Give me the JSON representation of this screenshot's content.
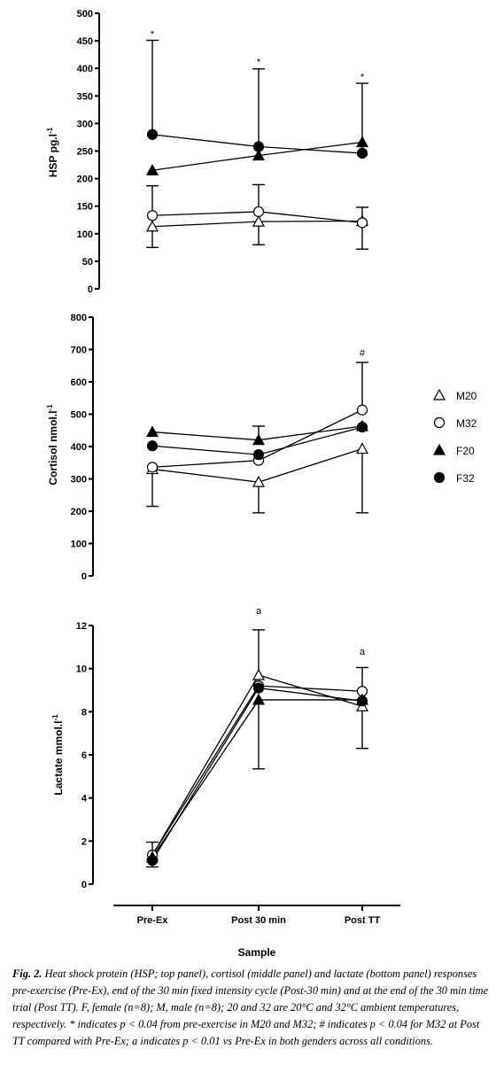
{
  "legend": [
    {
      "name": "M20",
      "marker": "triangle",
      "filled": false
    },
    {
      "name": "M32",
      "marker": "circle",
      "filled": false
    },
    {
      "name": "F20",
      "marker": "triangle",
      "filled": true
    },
    {
      "name": "F32",
      "marker": "circle",
      "filled": true
    }
  ],
  "chart_data": [
    {
      "type": "line",
      "panel": "top",
      "ylabel": "HSP pg.l",
      "ylabel_sup": "-1",
      "ylim": [
        0,
        500
      ],
      "yticks": [
        0,
        50,
        100,
        150,
        200,
        250,
        300,
        350,
        400,
        450,
        500
      ],
      "categories": [
        "Pre-Ex",
        "Post 30 min",
        "Post TT"
      ],
      "series": [
        {
          "name": "M20",
          "values": [
            113,
            122,
            123
          ],
          "err_up": [
            0,
            0,
            0
          ],
          "err_down": [
            38,
            42,
            0
          ]
        },
        {
          "name": "M32",
          "values": [
            133,
            140,
            120
          ],
          "err_up": [
            54,
            49,
            28
          ],
          "err_down": [
            0,
            0,
            48
          ]
        },
        {
          "name": "F20",
          "values": [
            215,
            242,
            266
          ],
          "err_up": [
            0,
            0,
            0
          ],
          "err_down": [
            0,
            0,
            0
          ]
        },
        {
          "name": "F32",
          "values": [
            280,
            258,
            246
          ],
          "err_up": [
            171,
            141,
            127
          ],
          "err_down": [
            0,
            0,
            0
          ]
        }
      ],
      "annotations": [
        {
          "category": 0,
          "value": 463,
          "text": "*"
        },
        {
          "category": 1,
          "value": 412,
          "text": "*"
        },
        {
          "category": 2,
          "value": 385,
          "text": "*"
        }
      ]
    },
    {
      "type": "line",
      "panel": "middle",
      "ylabel": "Cortisol nmol.l",
      "ylabel_sup": "-1",
      "ylim": [
        0,
        800
      ],
      "yticks": [
        0,
        100,
        200,
        300,
        400,
        500,
        600,
        700,
        800
      ],
      "categories": [
        "Pre-Ex",
        "Post 30 min",
        "Post TT"
      ],
      "series": [
        {
          "name": "M20",
          "values": [
            330,
            290,
            393
          ],
          "err_up": [
            0,
            0,
            0
          ],
          "err_down": [
            115,
            95,
            198
          ]
        },
        {
          "name": "M32",
          "values": [
            336,
            357,
            513
          ],
          "err_up": [
            0,
            0,
            147
          ],
          "err_down": [
            0,
            0,
            0
          ]
        },
        {
          "name": "F20",
          "values": [
            445,
            420,
            463
          ],
          "err_up": [
            0,
            43,
            0
          ],
          "err_down": [
            0,
            0,
            0
          ]
        },
        {
          "name": "F32",
          "values": [
            402,
            375,
            460
          ],
          "err_up": [
            0,
            0,
            0
          ],
          "err_down": [
            0,
            0,
            0
          ]
        }
      ],
      "annotations": [
        {
          "category": 2,
          "value": 690,
          "text": "#"
        }
      ]
    },
    {
      "type": "line",
      "panel": "bottom",
      "ylabel": "Lactate mmol.l",
      "ylabel_sup": "-1",
      "xlabel": "Sample",
      "ylim": [
        0,
        12
      ],
      "yticks": [
        0,
        2,
        4,
        6,
        8,
        10,
        12
      ],
      "categories": [
        "Pre-Ex",
        "Post 30 min",
        "Post TT"
      ],
      "series": [
        {
          "name": "M20",
          "values": [
            1.35,
            9.7,
            8.25
          ],
          "err_up": [
            0,
            0,
            0
          ],
          "err_down": [
            0.55,
            0,
            1.95
          ]
        },
        {
          "name": "M32",
          "values": [
            1.35,
            9.2,
            8.95
          ],
          "err_up": [
            0.6,
            2.6,
            1.1
          ],
          "err_down": [
            0,
            0,
            0
          ]
        },
        {
          "name": "F20",
          "values": [
            1.25,
            8.55,
            8.55
          ],
          "err_up": [
            0,
            0,
            0
          ],
          "err_down": [
            0,
            3.2,
            0
          ]
        },
        {
          "name": "F32",
          "values": [
            1.1,
            9.1,
            8.5
          ],
          "err_up": [
            0,
            0,
            0
          ],
          "err_down": [
            0,
            0,
            0
          ]
        }
      ],
      "annotations": [
        {
          "category": 1,
          "value": 12.7,
          "text": "a"
        },
        {
          "category": 2,
          "value": 10.8,
          "text": "a"
        }
      ]
    }
  ],
  "caption": {
    "label": "Fig. 2.",
    "text": "Heat shock protein (HSP; top panel), cortisol (middle panel) and lactate (bottom panel) responses pre-exercise (Pre-Ex), end of the 30 min fixed intensity cycle (Post-30 min) and at the end of the 30 min time trial (Post TT). F, female (n=8); M, male (n=8); 20 and 32 are 20°C and 32°C ambient temperatures, respectively. * indicates p < 0.04 from pre-exercise in M20 and M32; # indicates p < 0.04 for M32 at Post TT compared with Pre-Ex; a indicates p < 0.01 vs Pre-Ex in both genders across all conditions."
  }
}
